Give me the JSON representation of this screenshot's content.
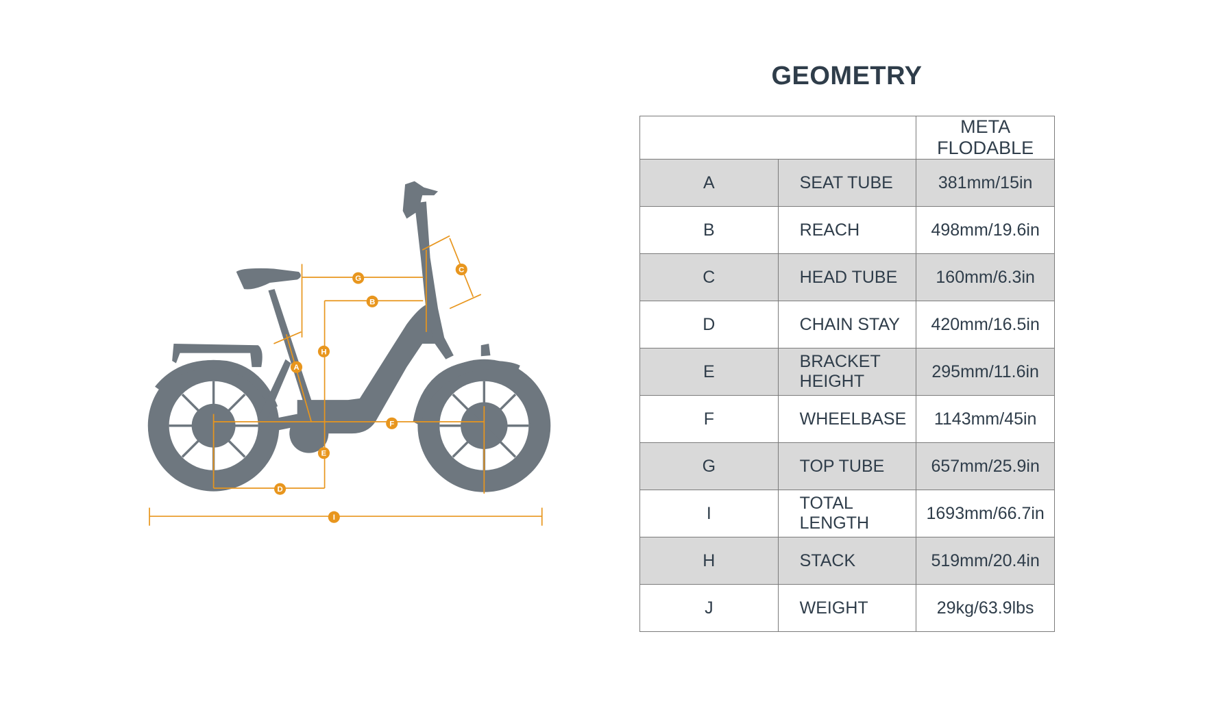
{
  "title": "GEOMETRY",
  "colors": {
    "bike": "#6e777f",
    "dimension": "#e8961e",
    "text": "#2f3d4a",
    "row_shade": "#d9d9d9"
  },
  "table": {
    "model": "META FLODABLE",
    "rows": [
      {
        "code": "A",
        "name": "SEAT TUBE",
        "value": "381mm/15in"
      },
      {
        "code": "B",
        "name": "REACH",
        "value": "498mm/19.6in"
      },
      {
        "code": "C",
        "name": "HEAD TUBE",
        "value": "160mm/6.3in"
      },
      {
        "code": "D",
        "name": "CHAIN STAY",
        "value": "420mm/16.5in"
      },
      {
        "code": "E",
        "name": "BRACKET HEIGHT",
        "value": "295mm/11.6in"
      },
      {
        "code": "F",
        "name": "WHEELBASE",
        "value": "1143mm/45in"
      },
      {
        "code": "G",
        "name": "TOP TUBE",
        "value": "657mm/25.9in"
      },
      {
        "code": "I",
        "name": "TOTAL LENGTH",
        "value": "1693mm/66.7in"
      },
      {
        "code": "H",
        "name": "STACK",
        "value": "519mm/20.4in"
      },
      {
        "code": "J",
        "name": "WEIGHT",
        "value": "29kg/63.9lbs"
      }
    ]
  },
  "diagram_labels": {
    "A": "A",
    "B": "B",
    "C": "C",
    "D": "D",
    "E": "E",
    "F": "F",
    "G": "G",
    "H": "H",
    "I": "I"
  }
}
